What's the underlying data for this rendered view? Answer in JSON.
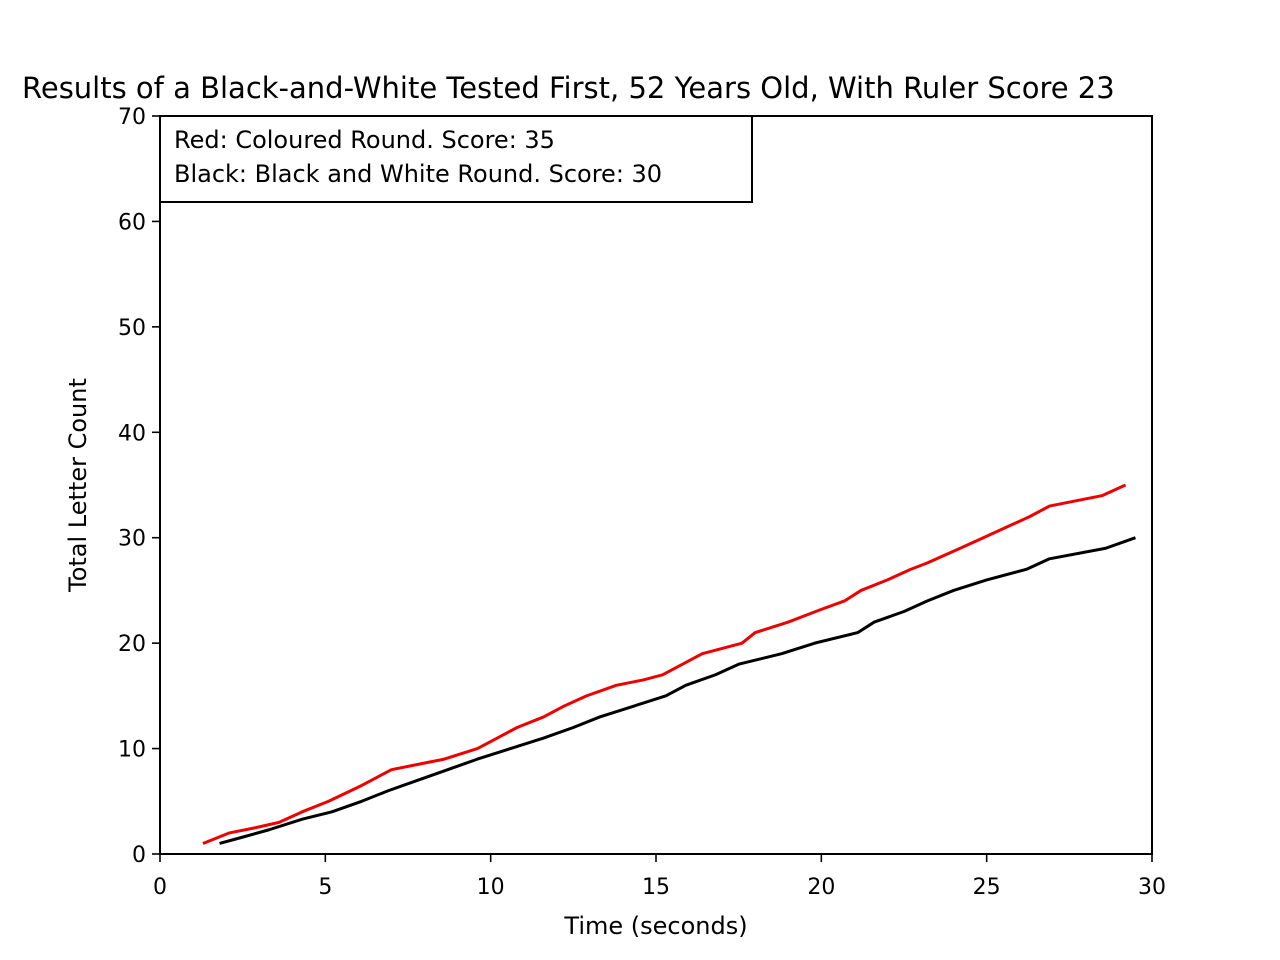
{
  "chart_data": {
    "type": "line",
    "title": "Results of a Black-and-White Tested First, 52 Years Old,  With Ruler Score 23",
    "xlabel": "Time (seconds)",
    "ylabel": "Total Letter Count",
    "xlim": [
      0,
      30
    ],
    "ylim": [
      0,
      70
    ],
    "xticks": [
      0,
      5,
      10,
      15,
      20,
      25,
      30
    ],
    "yticks": [
      0,
      10,
      20,
      30,
      40,
      50,
      60,
      70
    ],
    "grid": false,
    "legend_position": "top-left",
    "annotation_lines": [
      "Red: Coloured Round. Score: 35",
      "Black: Black and White Round. Score: 30"
    ],
    "series": [
      {
        "color": "#ee0000",
        "x": [
          1.3,
          2.1,
          2.9,
          3.6,
          4.3,
          5.1,
          6.1,
          7.0,
          7.8,
          8.6,
          9.6,
          10.2,
          10.8,
          11.6,
          12.2,
          12.9,
          13.8,
          14.6,
          15.2,
          16.4,
          17.6,
          18.0,
          19.0,
          20.0,
          20.7,
          21.2,
          22.0,
          22.7,
          23.2,
          24.2,
          24.9,
          25.6,
          26.3,
          26.9,
          28.5,
          29.2
        ],
        "values": [
          1,
          2,
          2.5,
          3,
          4,
          5,
          6.5,
          8,
          8.5,
          9,
          10,
          11,
          12,
          13,
          14,
          15,
          16,
          16.5,
          17,
          19,
          20,
          21,
          22,
          23.2,
          24,
          25,
          26,
          27,
          27.6,
          29,
          30,
          31,
          32,
          33,
          34,
          35
        ]
      },
      {
        "color": "#000000",
        "x": [
          1.8,
          2.5,
          3.3,
          4.3,
          5.2,
          6.1,
          6.9,
          7.8,
          8.7,
          9.6,
          10.6,
          11.6,
          12.5,
          13.3,
          14.3,
          15.3,
          15.9,
          16.8,
          17.5,
          18.8,
          19.8,
          21.1,
          21.6,
          22.5,
          23.2,
          24.0,
          25.0,
          26.2,
          26.9,
          28.6,
          29.5
        ],
        "values": [
          1,
          1.6,
          2.3,
          3.3,
          4,
          5,
          6,
          7,
          8,
          9,
          10,
          11,
          12,
          13,
          14,
          15,
          16,
          17,
          18,
          19,
          20,
          21,
          22,
          23,
          24,
          25,
          26,
          27,
          28,
          29,
          30
        ]
      }
    ]
  }
}
